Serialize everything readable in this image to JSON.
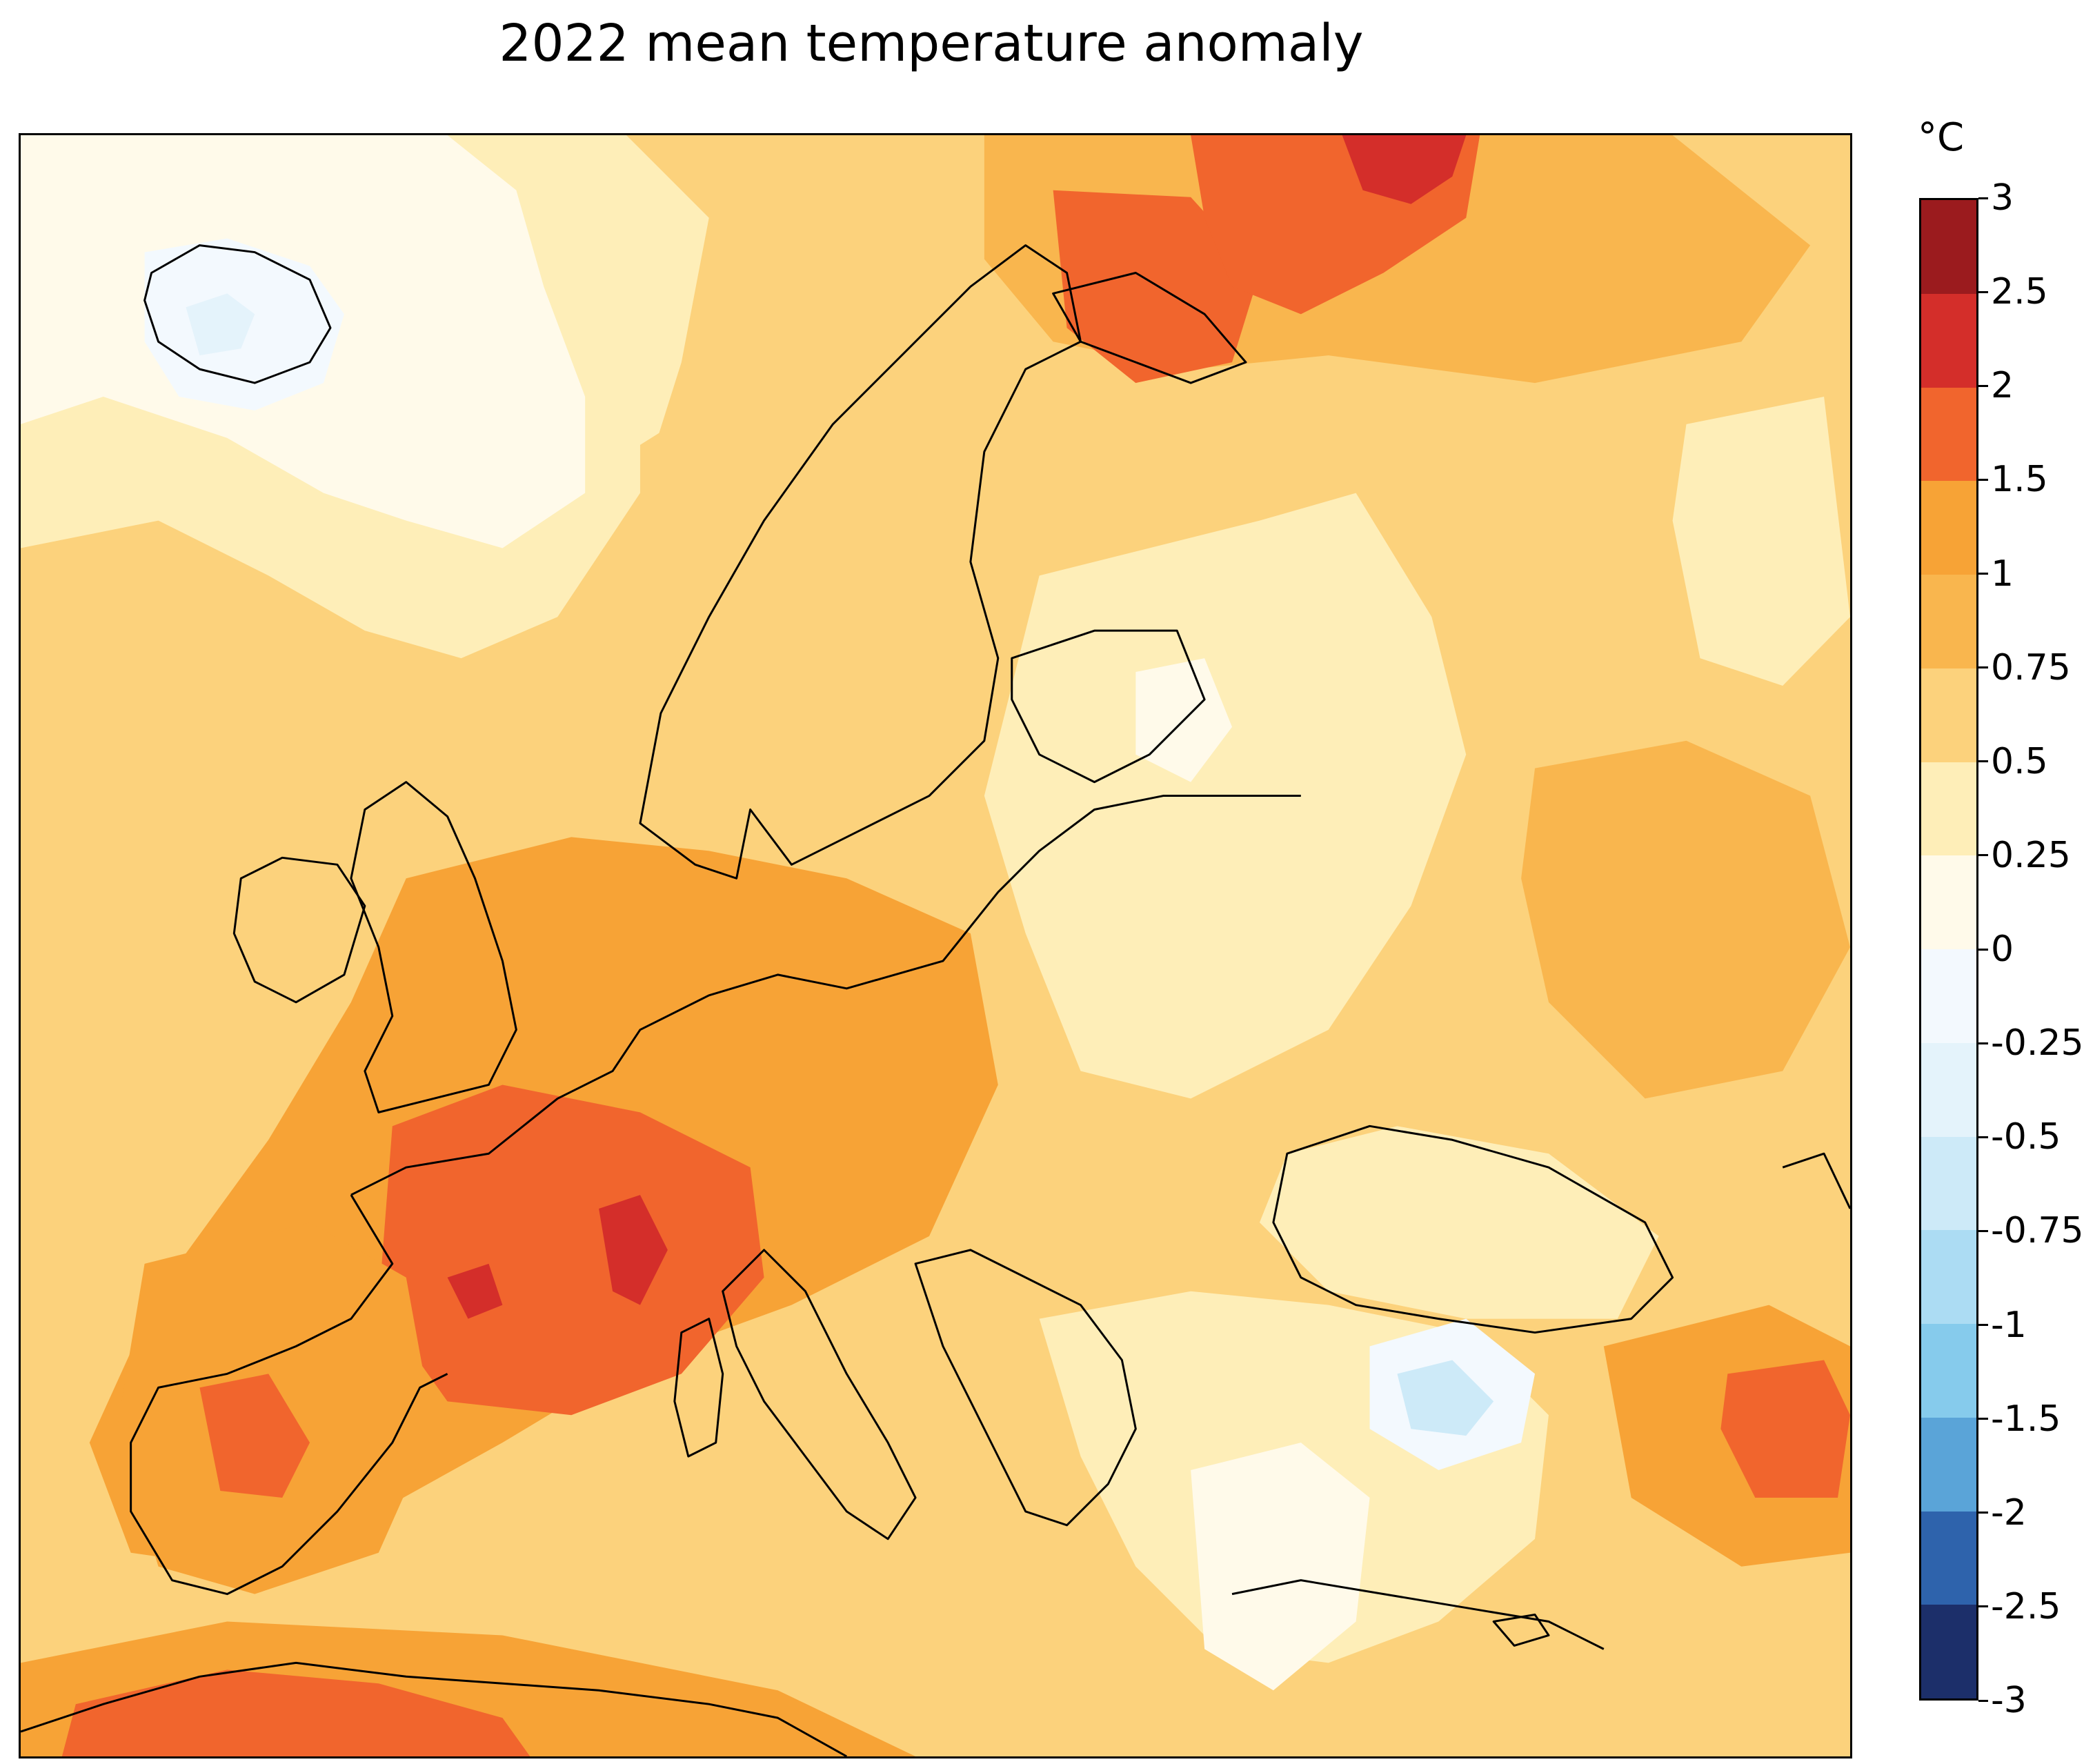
{
  "title": "2022 mean temperature anomaly",
  "colorbar": {
    "unit": "°C",
    "levels": [
      {
        "label": "3",
        "value": 3,
        "color": "#9b1b1e"
      },
      {
        "label": "2.5",
        "value": 2.5,
        "color": "#d42e2a"
      },
      {
        "label": "2",
        "value": 2,
        "color": "#f1652d"
      },
      {
        "label": "1.5",
        "value": 1.5,
        "color": "#f7a336"
      },
      {
        "label": "1",
        "value": 1,
        "color": "#f9b64e"
      },
      {
        "label": "0.75",
        "value": 0.75,
        "color": "#fcd27c"
      },
      {
        "label": "0.5",
        "value": 0.5,
        "color": "#feeeb8"
      },
      {
        "label": "0.25",
        "value": 0.25,
        "color": "#fffaea"
      },
      {
        "label": "0",
        "value": 0,
        "color": "#f3f9fe"
      },
      {
        "label": "-0.25",
        "value": -0.25,
        "color": "#e4f3fb"
      },
      {
        "label": "-0.5",
        "value": -0.5,
        "color": "#cdeaf8"
      },
      {
        "label": "-0.75",
        "value": -0.75,
        "color": "#acdcf3"
      },
      {
        "label": "-1",
        "value": -1,
        "color": "#86cbec"
      },
      {
        "label": "-1.5",
        "value": -1.5,
        "color": "#5aa4d8"
      },
      {
        "label": "-2",
        "value": -2,
        "color": "#2e63ac"
      },
      {
        "label": "-2.5",
        "value": -2.5,
        "color": "#1c2f6a"
      },
      {
        "label": "-3",
        "value": -3,
        "color": null
      }
    ]
  },
  "map": {
    "region": "Europe",
    "projection": "Lambert conformal",
    "palette": {
      "coastline": "#000000",
      "background_anomaly": "#fcd27c"
    }
  }
}
